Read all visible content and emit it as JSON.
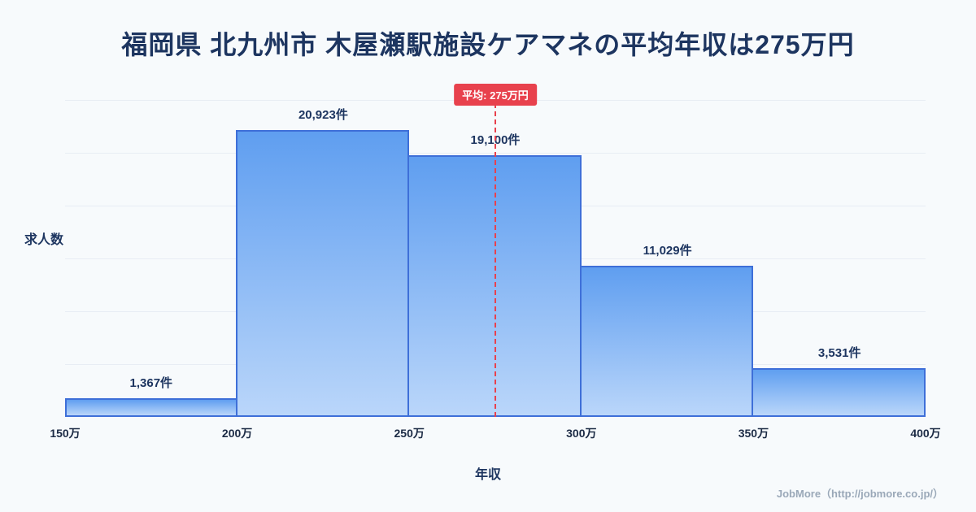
{
  "title": "福岡県 北九州市 木屋瀬駅施設ケアマネの平均年収は275万円",
  "chart_data": {
    "type": "bar",
    "subtype": "histogram",
    "title": "福岡県 北九州市 木屋瀬駅施設ケアマネの平均年収は275万円",
    "xlabel": "年収",
    "ylabel": "求人数",
    "x_tick_labels": [
      "150万",
      "200万",
      "250万",
      "300万",
      "350万",
      "400万"
    ],
    "x_range_man_yen": [
      150,
      400
    ],
    "bin_width_man_yen": 50,
    "categories": [
      "150万-200万",
      "200万-250万",
      "250万-300万",
      "300万-350万",
      "350万-400万"
    ],
    "values": [
      1367,
      20923,
      19100,
      11029,
      3531
    ],
    "value_labels": [
      "1,367件",
      "20,923件",
      "19,100件",
      "11,029件",
      "3,531件"
    ],
    "unit": "件",
    "average": {
      "value_man_yen": 275,
      "label": "平均: 275万円",
      "x_percent": 50
    },
    "grid": "horizontal",
    "legend": "none"
  },
  "footer": {
    "attribution": "JobMore（http://jobmore.co.jp/）"
  },
  "colors": {
    "background": "#f7fafc",
    "title_text": "#1d3560",
    "bar_fill_top": "#5f9ef0",
    "bar_fill_bottom": "#bad6fa",
    "bar_border": "#3e6fd8",
    "average_red": "#e8414d",
    "tick_text": "#1c2b45",
    "footer_text": "#9aa8b8"
  }
}
